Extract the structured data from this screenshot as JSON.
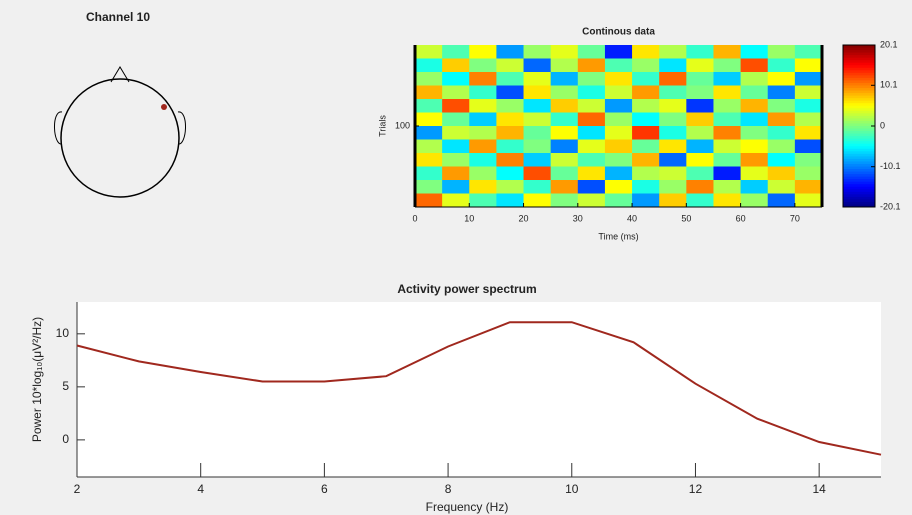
{
  "chart_data": [
    {
      "type": "topo",
      "title": "Channel 10",
      "color": "#a0281e"
    },
    {
      "type": "heatmap",
      "title": "Continous data",
      "x_label": "Time (ms)",
      "y_label": "Trials",
      "xlim": [
        0,
        75
      ],
      "xticks": [
        0,
        10,
        20,
        30,
        40,
        50,
        60,
        70
      ],
      "ylim": [
        0,
        200
      ],
      "yticks": [
        100
      ],
      "clim": [
        -20.1,
        20.1
      ],
      "cticks": [
        20.1,
        10.1,
        0,
        -10.1,
        -20.1
      ],
      "colormap": "jet",
      "values": [
        [
          3,
          -2,
          5,
          -9,
          1,
          4,
          -1,
          -14,
          6,
          2,
          -3,
          8,
          -5,
          1,
          -2
        ],
        [
          -4,
          7,
          0,
          3,
          -11,
          2,
          9,
          -2,
          1,
          -6,
          4,
          0,
          12,
          -3,
          5
        ],
        [
          1,
          -5,
          10,
          -2,
          4,
          -8,
          0,
          6,
          -3,
          11,
          -1,
          -7,
          2,
          5,
          -9
        ],
        [
          8,
          2,
          -3,
          -12,
          6,
          1,
          -4,
          3,
          9,
          -2,
          0,
          6,
          -1,
          -10,
          3
        ],
        [
          -2,
          12,
          4,
          1,
          -6,
          7,
          3,
          -9,
          2,
          4,
          -13,
          1,
          8,
          0,
          -4
        ],
        [
          5,
          -1,
          -7,
          6,
          3,
          -3,
          11,
          1,
          -5,
          0,
          7,
          -2,
          -6,
          9,
          2
        ],
        [
          -9,
          3,
          2,
          8,
          -1,
          5,
          -6,
          4,
          13,
          -4,
          2,
          10,
          0,
          -3,
          6
        ],
        [
          2,
          -6,
          9,
          -3,
          0,
          -10,
          4,
          7,
          -1,
          6,
          -8,
          3,
          5,
          1,
          -12
        ],
        [
          6,
          1,
          -4,
          10,
          -7,
          3,
          -2,
          0,
          8,
          -11,
          5,
          -1,
          9,
          -5,
          0
        ],
        [
          -3,
          9,
          1,
          -5,
          12,
          -1,
          6,
          -8,
          2,
          3,
          -2,
          -14,
          4,
          7,
          1
        ],
        [
          0,
          -8,
          6,
          2,
          -3,
          9,
          -12,
          5,
          -4,
          1,
          10,
          2,
          -7,
          3,
          8
        ],
        [
          11,
          4,
          -2,
          -6,
          5,
          0,
          3,
          -1,
          -9,
          7,
          -3,
          6,
          1,
          -11,
          4
        ]
      ]
    },
    {
      "type": "line",
      "title": "Activity power spectrum",
      "x_label": "Frequency (Hz)",
      "y_label": "Power 10*log₁₀(μV²/Hz)",
      "x": [
        2,
        3,
        4,
        5,
        6,
        7,
        8,
        9,
        10,
        11,
        12,
        13,
        14,
        15
      ],
      "values": [
        8.9,
        7.4,
        6.4,
        5.5,
        5.5,
        6.0,
        8.8,
        11.1,
        11.1,
        9.2,
        5.3,
        2.0,
        -0.2,
        -1.4
      ],
      "color": "#a0281e",
      "xlim": [
        2,
        15
      ],
      "xticks": [
        2,
        4,
        6,
        8,
        10,
        12,
        14
      ],
      "ylim": [
        -3.5,
        13
      ],
      "yticks": [
        0,
        5,
        10
      ]
    }
  ]
}
